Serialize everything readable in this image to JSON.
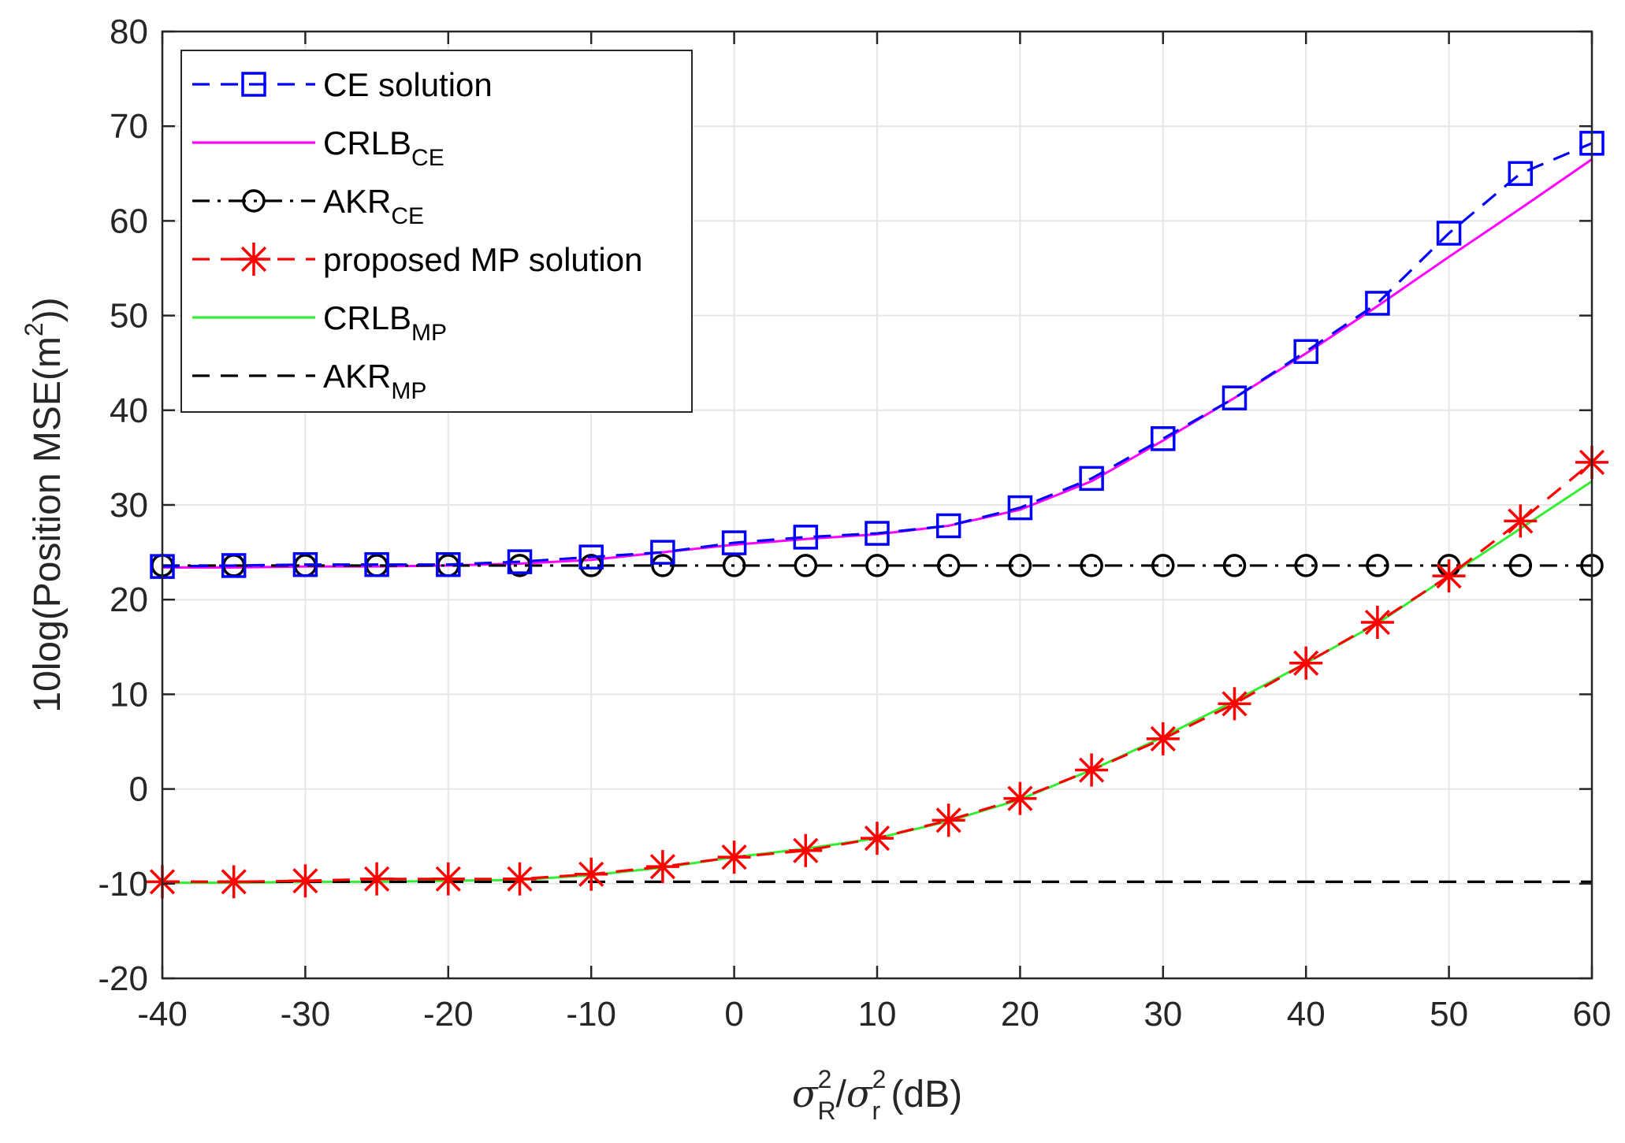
{
  "chart_data": {
    "type": "line",
    "xlabel": {
      "sigma": "σ",
      "sup1": "2",
      "sub1": "R",
      "slash": "/",
      "sup2": "2",
      "sub2": "r",
      "unit": " (dB)"
    },
    "ylabel": {
      "prefix": "10log(Position MSE(m",
      "sup": "2",
      "suffix": "))"
    },
    "xlim": [
      -40,
      60
    ],
    "ylim": [
      -20,
      80
    ],
    "xticks": [
      -40,
      -30,
      -20,
      -10,
      0,
      10,
      20,
      30,
      40,
      50,
      60
    ],
    "xtick_labels": [
      "-40",
      "-30",
      "-20",
      "-10",
      "0",
      "10",
      "20",
      "30",
      "40",
      "50",
      "60"
    ],
    "yticks": [
      -20,
      -10,
      0,
      10,
      20,
      30,
      40,
      50,
      60,
      70,
      80
    ],
    "ytick_labels": [
      "-20",
      "-10",
      "0",
      "10",
      "20",
      "30",
      "40",
      "50",
      "60",
      "70",
      "80"
    ],
    "grid": true,
    "legend_position": "top-left",
    "x": [
      -40,
      -35,
      -30,
      -25,
      -20,
      -15,
      -10,
      -5,
      0,
      5,
      10,
      15,
      20,
      25,
      30,
      35,
      40,
      45,
      50,
      55,
      60
    ],
    "series": [
      {
        "name": "CE solution",
        "sub": "",
        "color": "#0000ff",
        "dash": "dashed",
        "marker": "square",
        "values": [
          23.5,
          23.6,
          23.7,
          23.7,
          23.7,
          24.0,
          24.5,
          25.0,
          26.0,
          26.6,
          27.0,
          27.8,
          29.7,
          32.8,
          37.0,
          41.3,
          46.2,
          51.3,
          58.7,
          65.0,
          68.2
        ]
      },
      {
        "name": "CRLB",
        "sub": "CE",
        "color": "#ff00ff",
        "dash": "solid",
        "marker": "none",
        "values": [
          23.4,
          23.4,
          23.5,
          23.5,
          23.6,
          23.8,
          24.2,
          25.0,
          25.8,
          26.4,
          26.9,
          27.8,
          29.5,
          32.5,
          36.8,
          41.3,
          46.0,
          51.0,
          56.2,
          61.3,
          66.5
        ]
      },
      {
        "name": "AKR",
        "sub": "CE",
        "color": "#000000",
        "dash": "dashdot",
        "marker": "circle",
        "values": [
          23.6,
          23.6,
          23.6,
          23.6,
          23.6,
          23.6,
          23.6,
          23.6,
          23.6,
          23.6,
          23.6,
          23.6,
          23.6,
          23.6,
          23.6,
          23.6,
          23.6,
          23.6,
          23.6,
          23.6,
          23.6
        ]
      },
      {
        "name": "proposed MP solution",
        "sub": "",
        "color": "#ff0000",
        "dash": "dashed",
        "marker": "asterisk",
        "values": [
          -9.8,
          -9.8,
          -9.7,
          -9.5,
          -9.5,
          -9.5,
          -9.0,
          -8.2,
          -7.2,
          -6.5,
          -5.2,
          -3.3,
          -1.0,
          2.0,
          5.3,
          9.0,
          13.3,
          17.6,
          22.5,
          28.3,
          34.5
        ]
      },
      {
        "name": "CRLB",
        "sub": "MP",
        "color": "#33ee33",
        "dash": "solid",
        "marker": "none",
        "values": [
          -9.9,
          -9.9,
          -9.8,
          -9.8,
          -9.7,
          -9.6,
          -9.1,
          -8.3,
          -7.2,
          -6.3,
          -5.2,
          -3.4,
          -1.1,
          2.0,
          5.5,
          9.3,
          13.3,
          17.5,
          22.5,
          27.5,
          32.5
        ]
      },
      {
        "name": "AKR",
        "sub": "MP",
        "color": "#000000",
        "dash": "dashed",
        "marker": "none",
        "values": [
          -9.8,
          -9.8,
          -9.8,
          -9.8,
          -9.8,
          -9.8,
          -9.8,
          -9.8,
          -9.8,
          -9.8,
          -9.8,
          -9.8,
          -9.8,
          -9.8,
          -9.8,
          -9.8,
          -9.8,
          -9.8,
          -9.8,
          -9.8,
          -9.8
        ]
      }
    ]
  }
}
